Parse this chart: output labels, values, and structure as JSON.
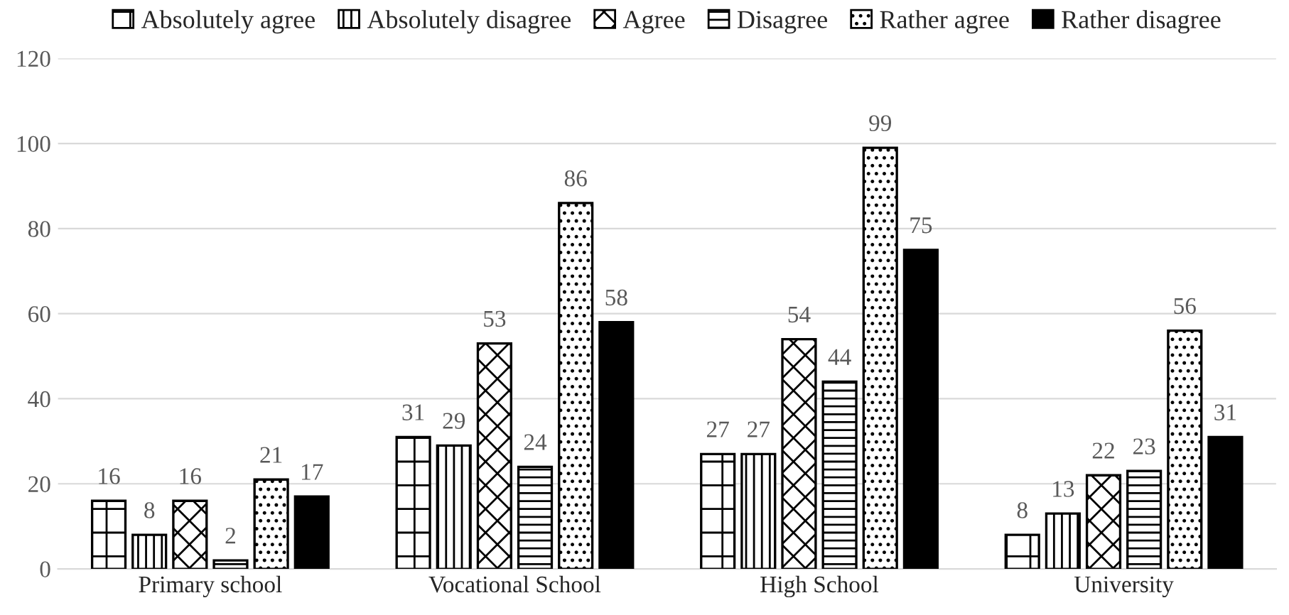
{
  "chart_data": {
    "type": "bar",
    "categories": [
      "Primary school",
      "Vocational School",
      "High School",
      "University"
    ],
    "series": [
      {
        "name": "Absolutely agree",
        "color": "#000000",
        "values": [
          16,
          31,
          27,
          8
        ]
      },
      {
        "name": "Absolutely disagree",
        "color": "#000000",
        "values": [
          8,
          29,
          27,
          13
        ]
      },
      {
        "name": "Agree",
        "color": "#000000",
        "values": [
          16,
          53,
          54,
          22
        ]
      },
      {
        "name": "Disagree",
        "color": "#000000",
        "values": [
          2,
          24,
          44,
          23
        ]
      },
      {
        "name": "Rather agree",
        "color": "#000000",
        "values": [
          21,
          86,
          99,
          56
        ]
      },
      {
        "name": "Rather disagree",
        "color": "#000000",
        "values": [
          17,
          58,
          75,
          31
        ]
      }
    ],
    "ylim": [
      0,
      120
    ],
    "yticks": [
      0,
      20,
      40,
      60,
      80,
      100,
      120
    ],
    "grid": "y",
    "legend": "top",
    "data_labels": true
  }
}
